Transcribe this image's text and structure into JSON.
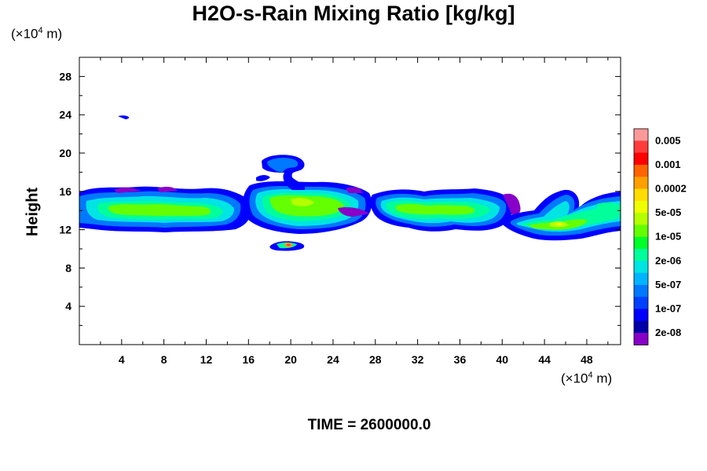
{
  "chart_data": {
    "type": "heatmap",
    "title": "H2O-s-Rain Mixing Ratio [kg/kg]",
    "ylabel": "Height",
    "x_unit": "(×10⁴ m)",
    "y_unit": "(×10⁴ m)",
    "footer": "TIME = 2600000.0",
    "xlim": [
      0,
      51.2
    ],
    "ylim": [
      0,
      30
    ],
    "x_ticks": [
      4,
      8,
      12,
      16,
      20,
      24,
      28,
      32,
      36,
      40,
      44,
      48
    ],
    "y_ticks": [
      4,
      8,
      12,
      16,
      20,
      24,
      28
    ],
    "colorbar": {
      "labels": [
        "0.005",
        "0.001",
        "0.0002",
        "5e-05",
        "1e-05",
        "2e-06",
        "5e-07",
        "1e-07",
        "2e-08"
      ],
      "colors_top_to_bottom": [
        "#ff9999",
        "#ff3c3c",
        "#ff0000",
        "#ff6400",
        "#ffa000",
        "#ffdc00",
        "#f0ff00",
        "#b4ff00",
        "#64ff00",
        "#00ff28",
        "#00ff9a",
        "#00e4e4",
        "#00b4ff",
        "#0078ff",
        "#0040ff",
        "#0000ff",
        "#0000a8",
        "#8800c8"
      ]
    },
    "bands": [
      {
        "x0": 0,
        "x1": 15.5,
        "y0": 12.2,
        "y1": 15.9,
        "level": "2e-06"
      },
      {
        "x0": 16.5,
        "x1": 26.5,
        "y0": 12.0,
        "y1": 16.7,
        "level": "1e-05"
      },
      {
        "x0": 16.8,
        "x1": 20.2,
        "y0": 17.0,
        "y1": 19.6,
        "level": "1e-07"
      },
      {
        "x0": 18.0,
        "x1": 21.6,
        "y0": 9.6,
        "y1": 10.8,
        "level": "1e-05"
      },
      {
        "x0": 28.0,
        "x1": 40.0,
        "y0": 12.0,
        "y1": 15.8,
        "level": "2e-06"
      },
      {
        "x0": 40.2,
        "x1": 51.2,
        "y0": 11.0,
        "y1": 16.0,
        "level": "2e-06"
      }
    ]
  }
}
